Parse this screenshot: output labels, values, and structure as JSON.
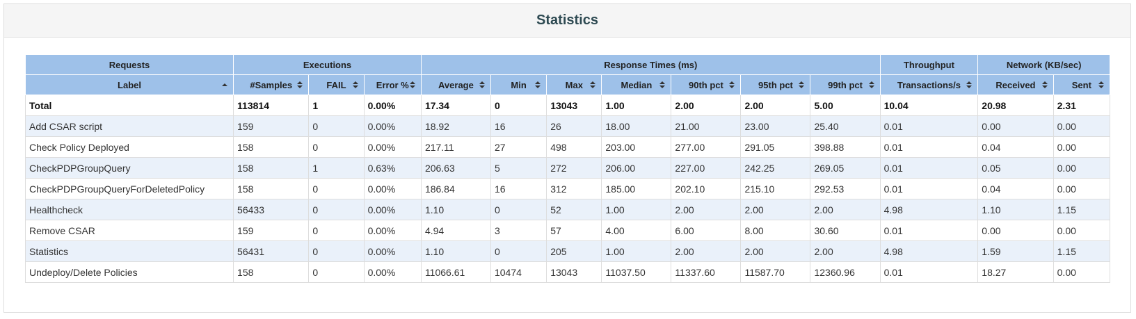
{
  "title": "Statistics",
  "groups": [
    {
      "label": "Requests",
      "span": 1
    },
    {
      "label": "Executions",
      "span": 3
    },
    {
      "label": "Response Times (ms)",
      "span": 7
    },
    {
      "label": "Throughput",
      "span": 1
    },
    {
      "label": "Network (KB/sec)",
      "span": 2
    }
  ],
  "columns": [
    {
      "label": "Label",
      "sort": "asc"
    },
    {
      "label": "#Samples",
      "sort": "both"
    },
    {
      "label": "FAIL",
      "sort": "both"
    },
    {
      "label": "Error %",
      "sort": "both"
    },
    {
      "label": "Average",
      "sort": "both"
    },
    {
      "label": "Min",
      "sort": "both"
    },
    {
      "label": "Max",
      "sort": "both"
    },
    {
      "label": "Median",
      "sort": "both"
    },
    {
      "label": "90th pct",
      "sort": "both"
    },
    {
      "label": "95th pct",
      "sort": "both"
    },
    {
      "label": "99th pct",
      "sort": "both"
    },
    {
      "label": "Transactions/s",
      "sort": "both"
    },
    {
      "label": "Received",
      "sort": "both"
    },
    {
      "label": "Sent",
      "sort": "both"
    }
  ],
  "total": [
    "Total",
    "113814",
    "1",
    "0.00%",
    "17.34",
    "0",
    "13043",
    "1.00",
    "2.00",
    "2.00",
    "5.00",
    "10.04",
    "20.98",
    "2.31"
  ],
  "rows": [
    [
      "Add CSAR script",
      "159",
      "0",
      "0.00%",
      "18.92",
      "16",
      "26",
      "18.00",
      "21.00",
      "23.00",
      "25.40",
      "0.01",
      "0.00",
      "0.00"
    ],
    [
      "Check Policy Deployed",
      "158",
      "0",
      "0.00%",
      "217.11",
      "27",
      "498",
      "203.00",
      "277.00",
      "291.05",
      "398.88",
      "0.01",
      "0.04",
      "0.00"
    ],
    [
      "CheckPDPGroupQuery",
      "158",
      "1",
      "0.63%",
      "206.63",
      "5",
      "272",
      "206.00",
      "227.00",
      "242.25",
      "269.05",
      "0.01",
      "0.05",
      "0.00"
    ],
    [
      "CheckPDPGroupQueryForDeletedPolicy",
      "158",
      "0",
      "0.00%",
      "186.84",
      "16",
      "312",
      "185.00",
      "202.10",
      "215.10",
      "292.53",
      "0.01",
      "0.04",
      "0.00"
    ],
    [
      "Healthcheck",
      "56433",
      "0",
      "0.00%",
      "1.10",
      "0",
      "52",
      "1.00",
      "2.00",
      "2.00",
      "2.00",
      "4.98",
      "1.10",
      "1.15"
    ],
    [
      "Remove CSAR",
      "159",
      "0",
      "0.00%",
      "4.94",
      "3",
      "57",
      "4.00",
      "6.00",
      "8.00",
      "30.60",
      "0.01",
      "0.00",
      "0.00"
    ],
    [
      "Statistics",
      "56431",
      "0",
      "0.00%",
      "1.10",
      "0",
      "205",
      "1.00",
      "2.00",
      "2.00",
      "2.00",
      "4.98",
      "1.59",
      "1.15"
    ],
    [
      "Undeploy/Delete Policies",
      "158",
      "0",
      "0.00%",
      "11066.61",
      "10474",
      "13043",
      "11037.50",
      "11337.60",
      "11587.70",
      "12360.96",
      "0.01",
      "18.27",
      "0.00"
    ]
  ]
}
